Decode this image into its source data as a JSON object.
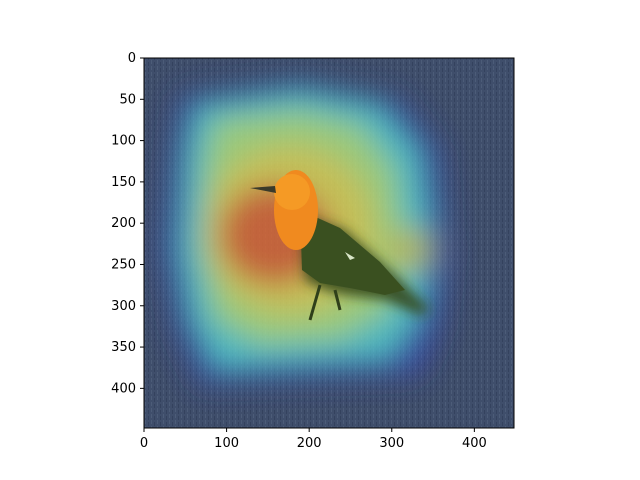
{
  "figure": {
    "description_colors": {
      "axis": "#000000",
      "grass": "#3e4d6a",
      "bird_orange": "#f5891e",
      "bird_dark": "#35491c",
      "heat_red": "#d83a20",
      "heat_yellow": "#e8e04a",
      "heat_cyan": "#59dfd4",
      "heat_blue": "#3040e0"
    },
    "axes": {
      "x_ticks": [
        "0",
        "100",
        "200",
        "300",
        "400"
      ],
      "y_ticks": [
        "0",
        "50",
        "100",
        "150",
        "200",
        "250",
        "300",
        "350",
        "400"
      ],
      "x_tick_values": [
        0,
        100,
        200,
        300,
        400
      ],
      "y_tick_values": [
        0,
        50,
        100,
        150,
        200,
        250,
        300,
        350,
        400
      ],
      "x_range": [
        0,
        448
      ],
      "y_range": [
        0,
        448
      ]
    },
    "icons": {
      "image": "bird-on-grass-heatmap-overlay"
    }
  }
}
